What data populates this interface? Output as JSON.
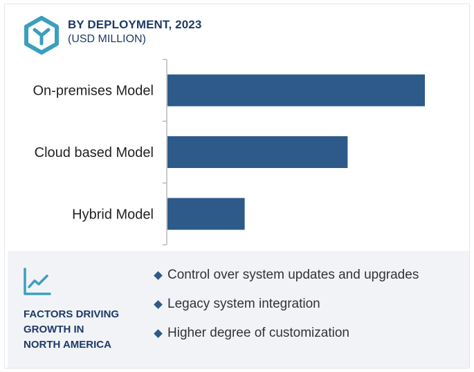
{
  "header": {
    "title": "BY DEPLOYMENT, 2023",
    "subtitle": "(USD MILLION)",
    "logo_icon": "hexagon-y-logo-icon"
  },
  "chart_data": {
    "type": "bar",
    "orientation": "horizontal",
    "categories": [
      "On-premises Model",
      "Cloud based Model",
      "Hybrid Model"
    ],
    "values": [
      100,
      70,
      30
    ],
    "value_note": "relative lengths only; no value axis printed",
    "xlim": [
      0,
      100
    ],
    "grid": false,
    "bar_color": "#2e5a8a"
  },
  "factors": {
    "icon": "trend-line-icon",
    "title_lines": [
      "FACTORS DRIVING",
      "GROWTH IN",
      "NORTH AMERICA"
    ],
    "bullets": [
      "Control over system updates and upgrades",
      "Legacy system integration",
      "Higher degree of customization"
    ]
  },
  "colors": {
    "accent_teal": "#3a9fbf",
    "navy": "#1e3a66",
    "bar": "#2e5a8a",
    "panel_bg": "#f1f3f7"
  }
}
